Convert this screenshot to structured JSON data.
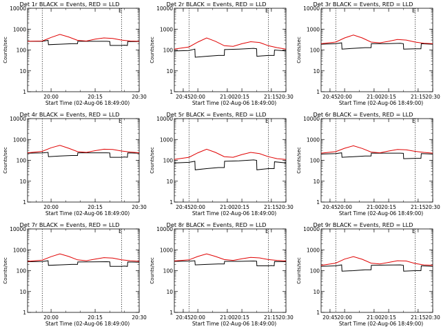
{
  "figure": {
    "ylabel": "Counts/sec",
    "xlabel": "Start Time (02-Aug-06 18:49:00)",
    "legend_mark": "E",
    "y_tick_labels": [
      "1",
      "10",
      "100",
      "1000",
      "10000"
    ],
    "x_tick_labels": [
      "20:00",
      "20:15",
      "20:30",
      "20:45",
      "21:00",
      "21:15"
    ],
    "colors": {
      "events": "#000000",
      "lld": "#e00000",
      "axes": "#000000",
      "background": "#ffffff"
    }
  },
  "chart_data": [
    {
      "type": "line",
      "title": "Det 1r BLACK = Events, RED = LLD",
      "x_unit": "minutes after 20:00",
      "xlim": [
        -8,
        30
      ],
      "ylim": [
        1,
        10000
      ],
      "y_scale": "log",
      "ylabel": "Counts/sec",
      "xlabel": "Start Time (02-Aug-06 18:49:00)",
      "dotted_lines_at": [
        -3,
        24
      ],
      "series": [
        {
          "name": "Events",
          "x": [
            -8,
            -3,
            -1,
            -0.9,
            3,
            7,
            9,
            9.1,
            14,
            19,
            20,
            20.1,
            24,
            25,
            26,
            26.1,
            30
          ],
          "values": [
            260,
            260,
            290,
            180,
            190,
            200,
            200,
            260,
            260,
            260,
            255,
            165,
            165,
            170,
            165,
            255,
            255
          ]
        },
        {
          "name": "LLD",
          "x": [
            -8,
            -3,
            0,
            3,
            6,
            9,
            12,
            15,
            18,
            21,
            24,
            27,
            30
          ],
          "values": [
            260,
            270,
            400,
            560,
            420,
            290,
            270,
            330,
            380,
            360,
            300,
            270,
            260
          ]
        }
      ]
    },
    {
      "type": "line",
      "title": "Det 2r BLACK = Events, RED = LLD",
      "x_unit": "minutes after 20:00",
      "xlim": [
        -8,
        30
      ],
      "ylim": [
        1,
        10000
      ],
      "y_scale": "log",
      "ylabel": "Counts/sec",
      "xlabel": "Start Time (02-Aug-06 18:49:00)",
      "dotted_lines_at": [
        -3,
        24
      ],
      "series": [
        {
          "name": "Events",
          "x": [
            -8,
            -3,
            -1,
            -0.9,
            3,
            7,
            9,
            9.1,
            14,
            19,
            20,
            20.1,
            24,
            25,
            26,
            26.1,
            30
          ],
          "values": [
            90,
            95,
            110,
            45,
            50,
            55,
            55,
            105,
            110,
            120,
            115,
            50,
            55,
            55,
            55,
            100,
            90
          ]
        },
        {
          "name": "LLD",
          "x": [
            -8,
            -3,
            0,
            3,
            6,
            9,
            12,
            15,
            18,
            21,
            24,
            27,
            30
          ],
          "values": [
            110,
            140,
            240,
            380,
            260,
            160,
            150,
            200,
            250,
            230,
            160,
            130,
            110
          ]
        }
      ]
    },
    {
      "type": "line",
      "title": "Det 3r BLACK = Events, RED = LLD",
      "x_unit": "minutes after 20:00",
      "xlim": [
        -8,
        30
      ],
      "ylim": [
        1,
        10000
      ],
      "y_scale": "log",
      "ylabel": "Counts/sec",
      "xlabel": "Start Time (02-Aug-06 18:49:00)",
      "dotted_lines_at": [
        -3,
        24
      ],
      "series": [
        {
          "name": "Events",
          "x": [
            -8,
            -3,
            -1,
            -0.9,
            3,
            7,
            9,
            9.1,
            14,
            19,
            20,
            20.1,
            24,
            25,
            26,
            26.1,
            30
          ],
          "values": [
            190,
            200,
            220,
            110,
            120,
            130,
            130,
            200,
            200,
            210,
            200,
            110,
            115,
            115,
            115,
            200,
            190
          ]
        },
        {
          "name": "LLD",
          "x": [
            -8,
            -3,
            0,
            3,
            6,
            9,
            12,
            15,
            18,
            21,
            24,
            27,
            30
          ],
          "values": [
            200,
            240,
            380,
            520,
            380,
            240,
            220,
            260,
            320,
            300,
            240,
            210,
            200
          ]
        }
      ]
    },
    {
      "type": "line",
      "title": "Det 4r BLACK = Events, RED = LLD",
      "x_unit": "minutes after 20:00",
      "xlim": [
        -8,
        30
      ],
      "ylim": [
        1,
        10000
      ],
      "y_scale": "log",
      "ylabel": "Counts/sec",
      "xlabel": "Start Time (02-Aug-06 18:49:00)",
      "dotted_lines_at": [
        -3,
        24
      ],
      "series": [
        {
          "name": "Events",
          "x": [
            -8,
            -3,
            -1,
            -0.9,
            3,
            7,
            9,
            9.1,
            14,
            19,
            20,
            20.1,
            24,
            25,
            26,
            26.1,
            30
          ],
          "values": [
            220,
            225,
            240,
            150,
            160,
            170,
            170,
            230,
            230,
            230,
            225,
            140,
            140,
            145,
            140,
            225,
            220
          ]
        },
        {
          "name": "LLD",
          "x": [
            -8,
            -3,
            0,
            3,
            6,
            9,
            12,
            15,
            18,
            21,
            24,
            27,
            30
          ],
          "values": [
            230,
            270,
            400,
            520,
            380,
            260,
            240,
            290,
            340,
            330,
            280,
            250,
            230
          ]
        }
      ]
    },
    {
      "type": "line",
      "title": "Det 5r BLACK = Events, RED = LLD",
      "x_unit": "minutes after 20:00",
      "xlim": [
        -8,
        30
      ],
      "ylim": [
        1,
        10000
      ],
      "y_scale": "log",
      "ylabel": "Counts/sec",
      "xlabel": "Start Time (02-Aug-06 18:49:00)",
      "dotted_lines_at": [
        -3,
        24
      ],
      "series": [
        {
          "name": "Events",
          "x": [
            -8,
            -3,
            -1,
            -0.9,
            3,
            7,
            9,
            9.1,
            14,
            19,
            20,
            20.1,
            24,
            25,
            26,
            26.1,
            30
          ],
          "values": [
            75,
            80,
            90,
            35,
            40,
            45,
            45,
            90,
            95,
            105,
            100,
            35,
            40,
            40,
            40,
            85,
            75
          ]
        },
        {
          "name": "LLD",
          "x": [
            -8,
            -3,
            0,
            3,
            6,
            9,
            12,
            15,
            18,
            21,
            24,
            27,
            30
          ],
          "values": [
            110,
            140,
            230,
            340,
            240,
            150,
            140,
            190,
            240,
            210,
            150,
            120,
            110
          ]
        }
      ]
    },
    {
      "type": "line",
      "title": "Det 6r BLACK = Events, RED = LLD",
      "x_unit": "minutes after 20:00",
      "xlim": [
        -8,
        30
      ],
      "ylim": [
        1,
        10000
      ],
      "y_scale": "log",
      "ylabel": "Counts/sec",
      "xlabel": "Start Time (02-Aug-06 18:49:00)",
      "dotted_lines_at": [
        -3,
        24
      ],
      "series": [
        {
          "name": "Events",
          "x": [
            -8,
            -3,
            -1,
            -0.9,
            3,
            7,
            9,
            9.1,
            14,
            19,
            20,
            20.1,
            24,
            25,
            26,
            26.1,
            30
          ],
          "values": [
            200,
            210,
            230,
            140,
            150,
            160,
            160,
            220,
            220,
            220,
            215,
            120,
            125,
            125,
            125,
            210,
            200
          ]
        },
        {
          "name": "LLD",
          "x": [
            -8,
            -3,
            0,
            3,
            6,
            9,
            12,
            15,
            18,
            21,
            24,
            27,
            30
          ],
          "values": [
            220,
            260,
            380,
            500,
            370,
            250,
            230,
            280,
            330,
            320,
            270,
            240,
            220
          ]
        }
      ]
    },
    {
      "type": "line",
      "title": "Det 7r BLACK = Events, RED = LLD",
      "x_unit": "minutes after 20:00",
      "xlim": [
        -8,
        30
      ],
      "ylim": [
        1,
        10000
      ],
      "y_scale": "log",
      "ylabel": "Counts/sec",
      "xlabel": "Start Time (02-Aug-06 18:49:00)",
      "dotted_lines_at": [
        -3,
        24
      ],
      "series": [
        {
          "name": "Events",
          "x": [
            -8,
            -3,
            -1,
            -0.9,
            3,
            7,
            9,
            9.1,
            14,
            19,
            20,
            20.1,
            24,
            25,
            26,
            26.1,
            30
          ],
          "values": [
            270,
            275,
            300,
            180,
            190,
            200,
            200,
            260,
            265,
            270,
            265,
            160,
            160,
            165,
            160,
            260,
            255
          ]
        },
        {
          "name": "LLD",
          "x": [
            -8,
            -3,
            0,
            3,
            6,
            9,
            12,
            15,
            18,
            21,
            24,
            27,
            30
          ],
          "values": [
            280,
            320,
            470,
            640,
            480,
            330,
            300,
            360,
            420,
            400,
            330,
            300,
            280
          ]
        }
      ]
    },
    {
      "type": "line",
      "title": "Det 8r BLACK = Events, RED = LLD",
      "x_unit": "minutes after 20:00",
      "xlim": [
        -8,
        30
      ],
      "ylim": [
        1,
        10000
      ],
      "y_scale": "log",
      "ylabel": "Counts/sec",
      "xlabel": "Start Time (02-Aug-06 18:49:00)",
      "dotted_lines_at": [
        -3,
        24
      ],
      "series": [
        {
          "name": "Events",
          "x": [
            -8,
            -3,
            -1,
            -0.9,
            3,
            7,
            9,
            9.1,
            14,
            19,
            20,
            20.1,
            24,
            25,
            26,
            26.1,
            30
          ],
          "values": [
            280,
            285,
            300,
            190,
            200,
            210,
            210,
            280,
            280,
            290,
            285,
            170,
            170,
            175,
            170,
            275,
            270
          ]
        },
        {
          "name": "LLD",
          "x": [
            -8,
            -3,
            0,
            3,
            6,
            9,
            12,
            15,
            18,
            21,
            24,
            27,
            30
          ],
          "values": [
            290,
            330,
            480,
            640,
            480,
            340,
            310,
            370,
            430,
            410,
            340,
            310,
            290
          ]
        }
      ]
    },
    {
      "type": "line",
      "title": "Det 9r BLACK = Events, RED = LLD",
      "x_unit": "minutes after 20:00",
      "xlim": [
        -8,
        30
      ],
      "ylim": [
        1,
        10000
      ],
      "y_scale": "log",
      "ylabel": "Counts/sec",
      "xlabel": "Start Time (02-Aug-06 18:49:00)",
      "dotted_lines_at": [
        -3,
        24
      ],
      "series": [
        {
          "name": "Events",
          "x": [
            -8,
            -3,
            -1,
            -0.9,
            3,
            7,
            9,
            9.1,
            14,
            19,
            20,
            20.1,
            24,
            25,
            26,
            26.1,
            30
          ],
          "values": [
            160,
            170,
            190,
            95,
            100,
            110,
            110,
            180,
            185,
            190,
            180,
            95,
            100,
            100,
            100,
            170,
            160
          ]
        },
        {
          "name": "LLD",
          "x": [
            -8,
            -3,
            0,
            3,
            6,
            9,
            12,
            15,
            18,
            21,
            24,
            27,
            30
          ],
          "values": [
            180,
            230,
            360,
            470,
            350,
            230,
            210,
            250,
            300,
            290,
            220,
            190,
            180
          ]
        }
      ]
    }
  ]
}
